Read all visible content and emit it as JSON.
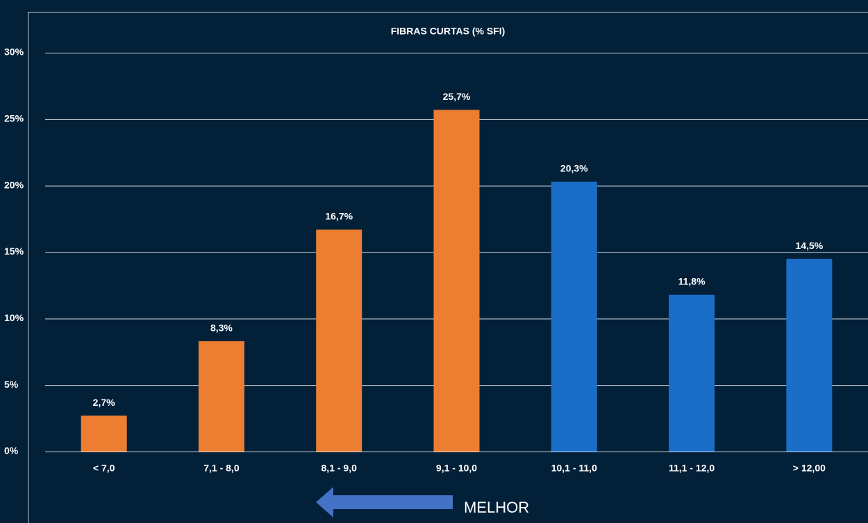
{
  "chart_data": {
    "type": "bar",
    "title": "FIBRAS CURTAS (% SFI)",
    "categories": [
      "< 7,0",
      "7,1 - 8,0",
      "8,1 - 9,0",
      "9,1 - 10,0",
      "10,1 - 11,0",
      "11,1 - 12,0",
      "> 12,00"
    ],
    "values": [
      2.7,
      8.3,
      16.7,
      25.7,
      20.3,
      11.8,
      14.5
    ],
    "value_labels": [
      "2,7%",
      "8,3%",
      "16,7%",
      "25,7%",
      "20,3%",
      "11,8%",
      "14,5%"
    ],
    "colors": [
      "#ed7d31",
      "#ed7d31",
      "#ed7d31",
      "#ed7d31",
      "#1a6ec8",
      "#1a6ec8",
      "#1a6ec8"
    ],
    "ylim": [
      0,
      30
    ],
    "yticks": [
      {
        "value": 0,
        "label": "0%"
      },
      {
        "value": 5,
        "label": "5%"
      },
      {
        "value": 10,
        "label": "10%"
      },
      {
        "value": 15,
        "label": "15%"
      },
      {
        "value": 20,
        "label": "20%"
      },
      {
        "value": 25,
        "label": "25%"
      },
      {
        "value": 30,
        "label": "30%"
      }
    ],
    "grid": true,
    "annotation": "MELHOR"
  }
}
